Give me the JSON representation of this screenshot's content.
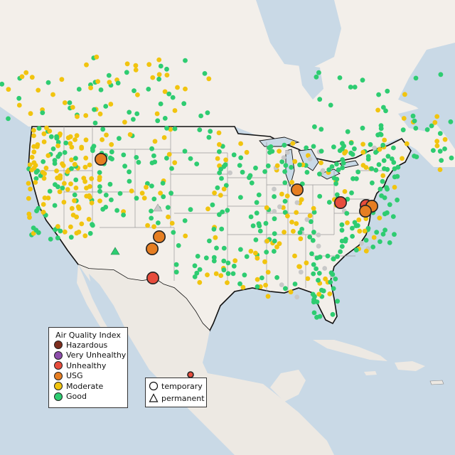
{
  "legend": {
    "title": "Air Quality Index",
    "items": [
      {
        "label": "Hazardous",
        "color": "#7e2e1e"
      },
      {
        "label": "Very Unhealthy",
        "color": "#8d4dab"
      },
      {
        "label": "Unhealthy",
        "color": "#e74c3c"
      },
      {
        "label": "USG",
        "color": "#e67e22"
      },
      {
        "label": "Moderate",
        "color": "#f1c40f"
      },
      {
        "label": "Good",
        "color": "#2ecc71"
      }
    ]
  },
  "monitor_types": {
    "temporary": "temporary",
    "permanent": "permanent"
  },
  "colors": {
    "ocean": "#c9d9e6",
    "land": "#f3efea",
    "land_mexico": "#ede9e3",
    "border": "#111111",
    "state_lines": "#9a9a9a",
    "no_data": "#c8c8c8"
  },
  "highlight_sites": [
    {
      "category": "USG",
      "region": "Idaho"
    },
    {
      "category": "USG",
      "region": "Chicago"
    },
    {
      "category": "USG",
      "region": "Arizona north"
    },
    {
      "category": "USG",
      "region": "Arizona south"
    },
    {
      "category": "Unhealthy",
      "region": "New Mexico"
    },
    {
      "category": "Unhealthy",
      "region": "Ohio"
    },
    {
      "category": "Unhealthy",
      "region": "Pennsylvania"
    },
    {
      "category": "USG",
      "region": "Pennsylvania"
    },
    {
      "category": "USG",
      "region": "Maryland"
    },
    {
      "category": "Unhealthy",
      "region": "Mexico"
    }
  ]
}
